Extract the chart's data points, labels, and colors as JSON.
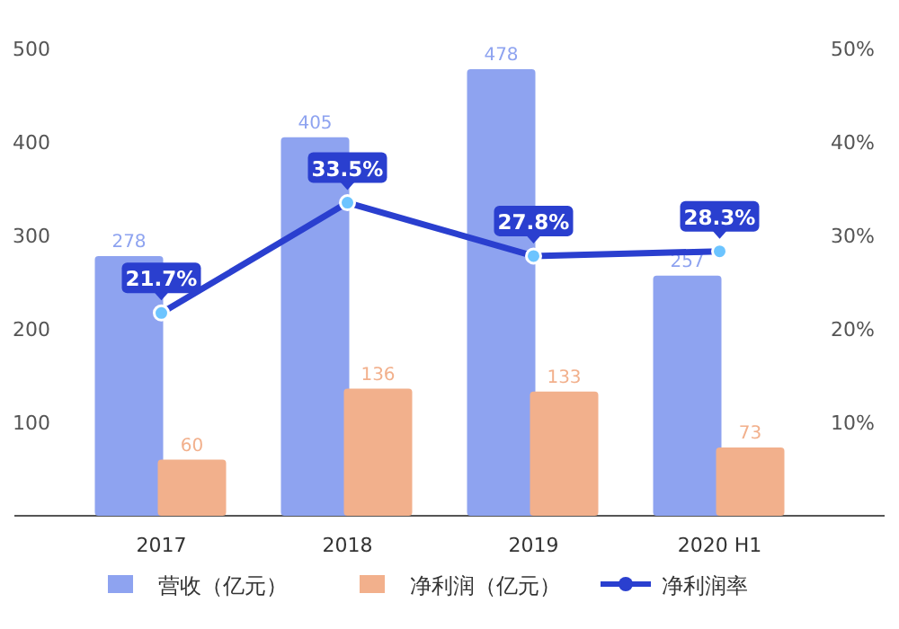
{
  "chart_data": {
    "type": "bar",
    "categories": [
      "2017",
      "2018",
      "2019",
      "2020 H1"
    ],
    "series": [
      {
        "name": "营收（亿元）",
        "color": "#8ea3f0",
        "values": [
          278,
          405,
          478,
          257
        ]
      },
      {
        "name": "净利润（亿元）",
        "color": "#f2b08c",
        "values": [
          60,
          136,
          133,
          73
        ]
      },
      {
        "name": "净利润率",
        "type": "line",
        "axis": "y2",
        "color": "#2a3fcf",
        "values": [
          21.7,
          33.5,
          27.8,
          28.3
        ],
        "value_labels": [
          "21.7%",
          "33.5%",
          "27.8%",
          "28.3%"
        ]
      }
    ],
    "ylim": [
      0,
      500
    ],
    "yticks": [
      100,
      200,
      300,
      400,
      500
    ],
    "y2lim": [
      0,
      50
    ],
    "y2ticks": [
      {
        "value": 10,
        "label": "10%"
      },
      {
        "value": 20,
        "label": "20%"
      },
      {
        "value": 30,
        "label": "30%"
      },
      {
        "value": 40,
        "label": "40%"
      },
      {
        "value": 50,
        "label": "50%"
      }
    ],
    "data_labels": true,
    "legend": "bottom",
    "marker": "circle",
    "grid": false
  }
}
